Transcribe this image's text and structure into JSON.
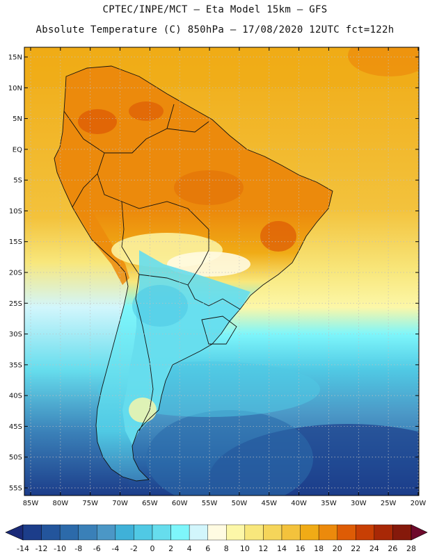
{
  "header": {
    "line1": "CPTEC/INPE/MCT –  Eta Model 15km – GFS",
    "line2": "Absolute Temperature (C) 850hPa – 17/08/2020 12UTC fct=122h"
  },
  "map": {
    "lat_labels": [
      "15N",
      "10N",
      "5N",
      "EQ",
      "5S",
      "10S",
      "15S",
      "20S",
      "25S",
      "30S",
      "35S",
      "40S",
      "45S",
      "50S",
      "55S"
    ],
    "lon_labels": [
      "85W",
      "80W",
      "75W",
      "70W",
      "65W",
      "60W",
      "55W",
      "50W",
      "45W",
      "40W",
      "35W",
      "30W",
      "25W",
      "20W"
    ]
  },
  "colorbar": {
    "labels": [
      "-14",
      "-12",
      "-10",
      "-8",
      "-6",
      "-4",
      "-2",
      "0",
      "2",
      "4",
      "6",
      "8",
      "10",
      "12",
      "14",
      "16",
      "18",
      "20",
      "22",
      "24",
      "26",
      "28"
    ],
    "colors": [
      "#1c3d8a",
      "#23559c",
      "#2c6aaa",
      "#3a80b8",
      "#4b97c6",
      "#3fb1d8",
      "#50c9e4",
      "#66dded",
      "#7ef6fb",
      "#d2f6fc",
      "#fffbe2",
      "#fcf7a8",
      "#f8e77c",
      "#f5d55a",
      "#f3c23c",
      "#f0ab16",
      "#ec8a0c",
      "#de5c05",
      "#c83f04",
      "#a82806",
      "#85190b"
    ],
    "low_color": "#1a2a78",
    "high_color": "#6e0a2c"
  }
}
